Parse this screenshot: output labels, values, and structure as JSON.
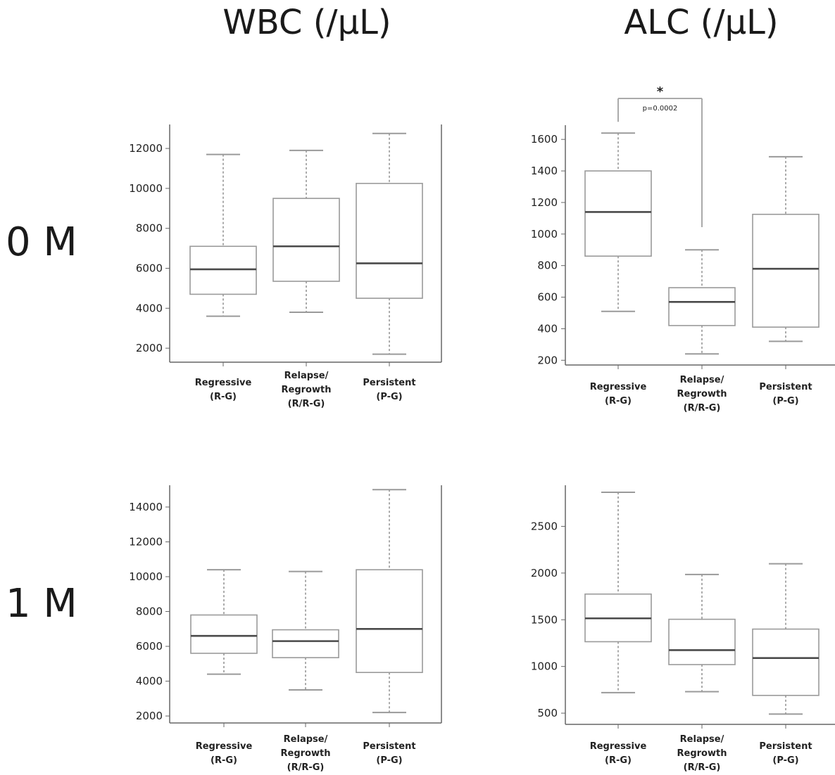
{
  "column_titles": [
    "WBC (/μL)",
    "ALC (/μL)"
  ],
  "row_labels": [
    "0 M",
    "1 M"
  ],
  "categories": [
    [
      "Regressive",
      "(R-G)"
    ],
    [
      "Relapse/",
      "Regrowth",
      "(R/R-G)"
    ],
    [
      "Persistent",
      "(P-G)"
    ]
  ],
  "colors": {
    "box_edge": "#9a9a9a",
    "median": "#4a4a4a",
    "axis": "#666666",
    "whisker": "#aaaaaa"
  },
  "chart_data": [
    {
      "type": "box",
      "panel": "WBC 0 M",
      "yticks": [
        2000,
        4000,
        6000,
        8000,
        10000,
        12000
      ],
      "ylim": [
        1300,
        13200
      ],
      "boxes": [
        {
          "category": "Regressive (R-G)",
          "min": 3600,
          "q1": 4700,
          "median": 5950,
          "q3": 7100,
          "max": 11700
        },
        {
          "category": "Relapse/Regrowth (R/R-G)",
          "min": 3800,
          "q1": 5350,
          "median": 7100,
          "q3": 9500,
          "max": 11900
        },
        {
          "category": "Persistent (P-G)",
          "min": 1700,
          "q1": 4500,
          "median": 6250,
          "q3": 10250,
          "max": 12750
        }
      ]
    },
    {
      "type": "box",
      "panel": "ALC 0 M",
      "yticks": [
        200,
        400,
        600,
        800,
        1000,
        1200,
        1400,
        1600
      ],
      "ylim": [
        170,
        1690
      ],
      "boxes": [
        {
          "category": "Regressive (R-G)",
          "min": 510,
          "q1": 860,
          "median": 1140,
          "q3": 1400,
          "max": 1640
        },
        {
          "category": "Relapse/Regrowth (R/R-G)",
          "min": 240,
          "q1": 420,
          "median": 570,
          "q3": 660,
          "max": 900
        },
        {
          "category": "Persistent (P-G)",
          "min": 320,
          "q1": 410,
          "median": 780,
          "q3": 1125,
          "max": 1490
        }
      ],
      "annotation": {
        "symbol": "*",
        "text": "p=0.0002",
        "between": [
          0,
          1
        ]
      }
    },
    {
      "type": "box",
      "panel": "WBC 1 M",
      "yticks": [
        2000,
        4000,
        6000,
        8000,
        10000,
        12000,
        14000
      ],
      "ylim": [
        1600,
        15250
      ],
      "boxes": [
        {
          "category": "Regressive (R-G)",
          "min": 4400,
          "q1": 5600,
          "median": 6600,
          "q3": 7800,
          "max": 10400
        },
        {
          "category": "Relapse/Regrowth (R/R-G)",
          "min": 3500,
          "q1": 5350,
          "median": 6300,
          "q3": 6950,
          "max": 10300
        },
        {
          "category": "Persistent (P-G)",
          "min": 2200,
          "q1": 4500,
          "median": 7000,
          "q3": 10400,
          "max": 15000
        }
      ]
    },
    {
      "type": "box",
      "panel": "ALC 1 M",
      "yticks": [
        500,
        1000,
        1500,
        2000,
        2500
      ],
      "ylim": [
        380,
        2940
      ],
      "boxes": [
        {
          "category": "Regressive (R-G)",
          "min": 720,
          "q1": 1265,
          "median": 1515,
          "q3": 1775,
          "max": 2865
        },
        {
          "category": "Relapse/Regrowth (R/R-G)",
          "min": 730,
          "q1": 1020,
          "median": 1175,
          "q3": 1505,
          "max": 1985
        },
        {
          "category": "Persistent (P-G)",
          "min": 490,
          "q1": 690,
          "median": 1090,
          "q3": 1400,
          "max": 2100
        }
      ]
    }
  ]
}
